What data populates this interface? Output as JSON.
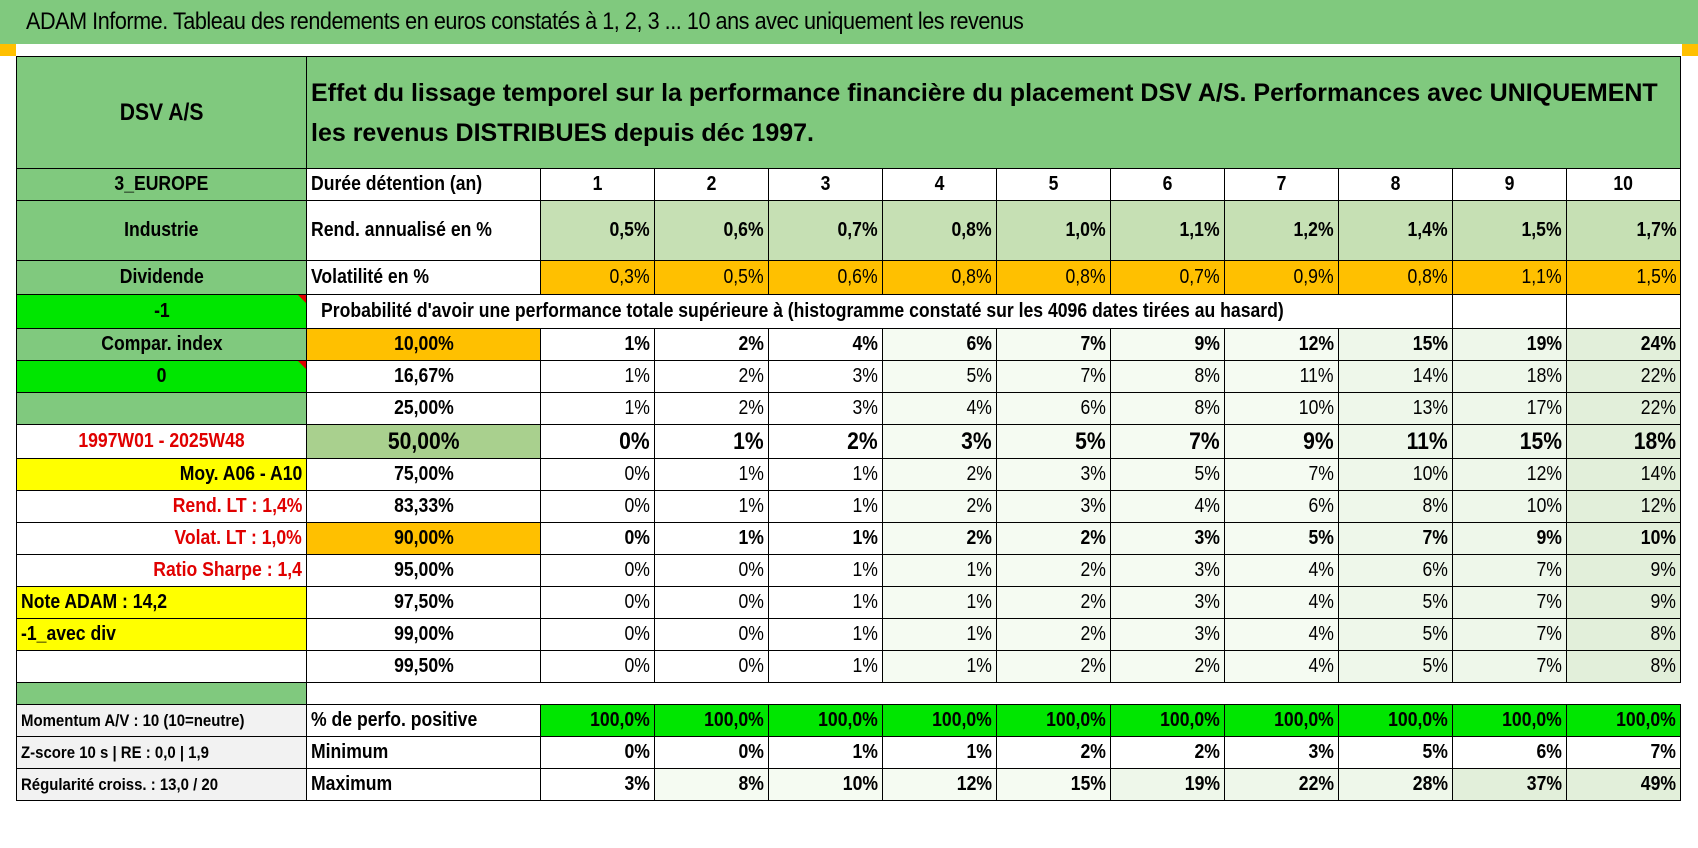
{
  "title": "ADAM Informe. Tableau des rendements en euros constatés à 1, 2, 3 ... 10 ans avec uniquement les revenus",
  "header": {
    "name": "DSV A/S",
    "description": "Effet du lissage temporel sur la performance financière du placement DSV A/S. Performances avec UNIQUEMENT les revenus DISTRIBUES depuis déc 1997."
  },
  "left": {
    "region": "3_EUROPE",
    "sector": "Industrie",
    "type": "Dividende",
    "val_m1": "-1",
    "compar": "Compar. index",
    "val_0": "0",
    "period": "1997W01 - 2025W48",
    "moy": "Moy. A06 - A10",
    "rend_lt": "Rend. LT :    1,4%",
    "volat_lt": "Volat. LT :    1,0%",
    "sharpe": "Ratio Sharpe :     1,4",
    "note": "Note ADAM : 14,2",
    "avec_div": "-1_avec div"
  },
  "table": {
    "duree_label": "Durée détention (an)",
    "years": [
      "1",
      "2",
      "3",
      "4",
      "5",
      "6",
      "7",
      "8",
      "9",
      "10"
    ],
    "rend_label": "Rend. annualisé en %",
    "rend": [
      "0,5%",
      "0,6%",
      "0,7%",
      "0,8%",
      "1,0%",
      "1,1%",
      "1,2%",
      "1,4%",
      "1,5%",
      "1,7%"
    ],
    "vol_label": "Volatilité en %",
    "vol": [
      "0,3%",
      "0,5%",
      "0,6%",
      "0,8%",
      "0,8%",
      "0,7%",
      "0,9%",
      "0,8%",
      "1,1%",
      "1,5%"
    ],
    "proba_label": "Probabilité d'avoir une performance totale supérieure à (histogramme constaté sur les 4096 dates tirées au hasard)",
    "prob_rows": [
      {
        "p": "10,00%",
        "v": [
          "1%",
          "2%",
          "4%",
          "6%",
          "7%",
          "9%",
          "12%",
          "15%",
          "19%",
          "24%"
        ]
      },
      {
        "p": "16,67%",
        "v": [
          "1%",
          "2%",
          "3%",
          "5%",
          "7%",
          "8%",
          "11%",
          "14%",
          "18%",
          "22%"
        ]
      },
      {
        "p": "25,00%",
        "v": [
          "1%",
          "2%",
          "3%",
          "4%",
          "6%",
          "8%",
          "10%",
          "13%",
          "17%",
          "22%"
        ]
      },
      {
        "p": "50,00%",
        "v": [
          "0%",
          "1%",
          "2%",
          "3%",
          "5%",
          "7%",
          "9%",
          "11%",
          "15%",
          "18%"
        ]
      },
      {
        "p": "75,00%",
        "v": [
          "0%",
          "1%",
          "1%",
          "2%",
          "3%",
          "5%",
          "7%",
          "10%",
          "12%",
          "14%"
        ]
      },
      {
        "p": "83,33%",
        "v": [
          "0%",
          "1%",
          "1%",
          "2%",
          "3%",
          "4%",
          "6%",
          "8%",
          "10%",
          "12%"
        ]
      },
      {
        "p": "90,00%",
        "v": [
          "0%",
          "1%",
          "1%",
          "2%",
          "2%",
          "3%",
          "5%",
          "7%",
          "9%",
          "10%"
        ]
      },
      {
        "p": "95,00%",
        "v": [
          "0%",
          "0%",
          "1%",
          "1%",
          "2%",
          "3%",
          "4%",
          "6%",
          "7%",
          "9%"
        ]
      },
      {
        "p": "97,50%",
        "v": [
          "0%",
          "0%",
          "1%",
          "1%",
          "2%",
          "3%",
          "4%",
          "5%",
          "7%",
          "9%"
        ]
      },
      {
        "p": "99,00%",
        "v": [
          "0%",
          "0%",
          "1%",
          "1%",
          "2%",
          "3%",
          "4%",
          "5%",
          "7%",
          "8%"
        ]
      },
      {
        "p": "99,50%",
        "v": [
          "0%",
          "0%",
          "1%",
          "1%",
          "2%",
          "2%",
          "4%",
          "5%",
          "7%",
          "8%"
        ]
      }
    ]
  },
  "bottom": {
    "momentum": "Momentum A/V : 10 (10=neutre)",
    "zscore": "Z-score 10 s  |  RE : 0,0  |  1,9",
    "regularite": "Régularité croiss. : 13,0 / 20",
    "pos_label": "% de perfo. positive",
    "pos": [
      "100,0%",
      "100,0%",
      "100,0%",
      "100,0%",
      "100,0%",
      "100,0%",
      "100,0%",
      "100,0%",
      "100,0%",
      "100,0%"
    ],
    "min_label": "Minimum",
    "min": [
      "0%",
      "0%",
      "1%",
      "1%",
      "2%",
      "2%",
      "3%",
      "5%",
      "6%",
      "7%"
    ],
    "max_label": "Maximum",
    "max": [
      "3%",
      "8%",
      "10%",
      "12%",
      "15%",
      "19%",
      "22%",
      "28%",
      "37%",
      "49%"
    ]
  }
}
